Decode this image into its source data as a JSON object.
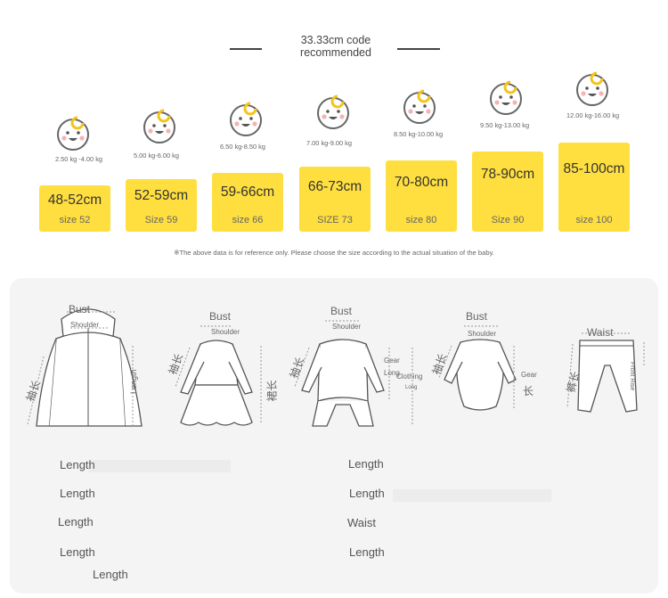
{
  "header": {
    "title": "33.33cm code",
    "subtitle": "recommended"
  },
  "sizes": [
    {
      "weight": "2.50 kg -4.00 kg",
      "length": "48-52cm",
      "size": "size 52"
    },
    {
      "weight": "5.00 kg-6.00 kg",
      "length": "52-59cm",
      "size": "Size 59"
    },
    {
      "weight": "6.50 kg-8.50 kg",
      "length": "59-66cm",
      "size": "size 66"
    },
    {
      "weight": "7.00 kg-9.00 kg",
      "length": "66-73cm",
      "size": "SIZE 73"
    },
    {
      "weight": "8.50 kg-10.00 kg",
      "length": "70-80cm",
      "size": "size 80"
    },
    {
      "weight": "9.50 kg-13.00 kg",
      "length": "78-90cm",
      "size": "Size 90"
    },
    {
      "weight": "12.00 kg-16.00 kg",
      "length": "85-100cm",
      "size": "size 100"
    }
  ],
  "note": "※The above data is for reference only. Please choose the size according to the actual situation of the baby.",
  "diagram": {
    "jacket": {
      "bust": "Bust",
      "shoulder": "Shoulder",
      "sleeve": "袖长",
      "length": "Length"
    },
    "dress": {
      "bust": "Bust",
      "shoulder": "Shoulder",
      "sleeve": "袖长",
      "skirt": "裙长"
    },
    "romper": {
      "bust": "Bust",
      "shoulder": "Shoulder",
      "sleeve": "袖长",
      "gear": "Gear",
      "long": "Long",
      "clothing": "Clothing",
      "clothing_long": "Long"
    },
    "bodysuit": {
      "bust": "Bust",
      "shoulder": "Shoulder",
      "sleeve": "袖长",
      "gear": "Gear",
      "gear_long": "长"
    },
    "pants": {
      "waist": "Waist",
      "pant_length": "裤长",
      "front_rise": "Front Rise"
    }
  },
  "legend": {
    "left": [
      "Length",
      "Length",
      "Length",
      "Length",
      "Length"
    ],
    "right": [
      "Length",
      "Length",
      "Waist",
      "Length"
    ]
  }
}
